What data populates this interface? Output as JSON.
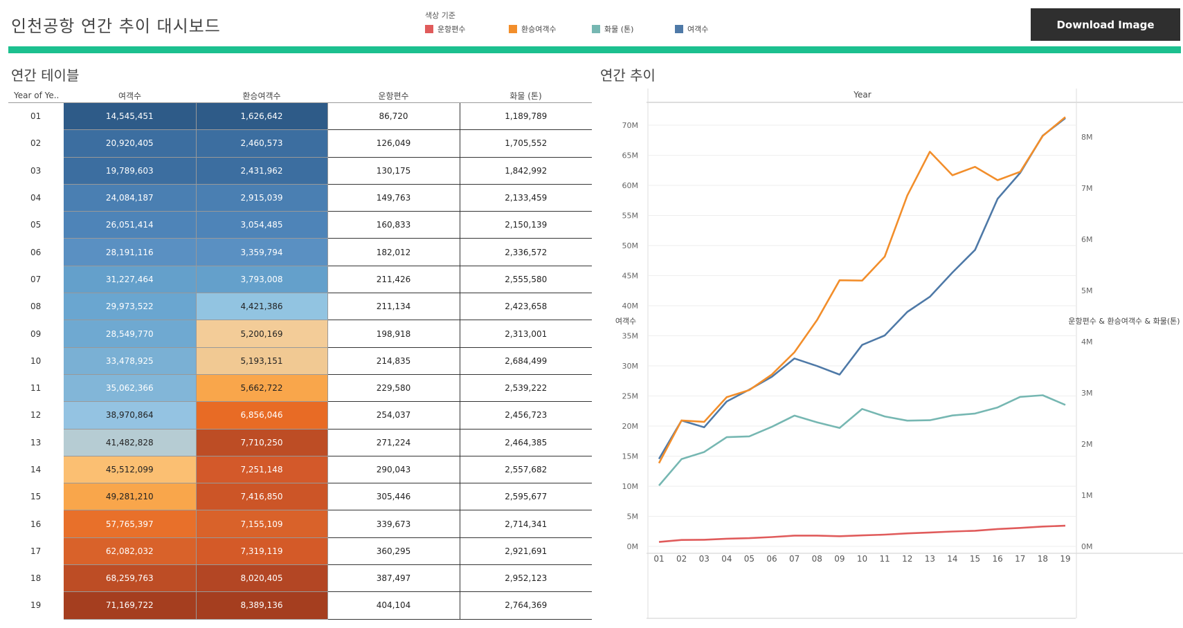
{
  "header": {
    "title": "인천공항 연간 추이 대시보드",
    "legend_title": "색상 기준",
    "legend": [
      {
        "label": "운항편수",
        "color": "#e05b5b"
      },
      {
        "label": "환승여객수",
        "color": "#f28e2b"
      },
      {
        "label": "화물 (톤)",
        "color": "#76b7b2"
      },
      {
        "label": "여객수",
        "color": "#4e79a7"
      }
    ],
    "download_label": "Download Image",
    "accent_color": "#1cc08f"
  },
  "table": {
    "section_title": "연간 테이블",
    "columns": [
      "Year of Ye..",
      "여객수",
      "환승여객수",
      "운항편수",
      "화물 (톤)"
    ],
    "rows": [
      {
        "year": "01",
        "passengers": "14,545,451",
        "transfer": "1,626,642",
        "flights": "86,720",
        "cargo": "1,189,789"
      },
      {
        "year": "02",
        "passengers": "20,920,405",
        "transfer": "2,460,573",
        "flights": "126,049",
        "cargo": "1,705,552"
      },
      {
        "year": "03",
        "passengers": "19,789,603",
        "transfer": "2,431,962",
        "flights": "130,175",
        "cargo": "1,842,992"
      },
      {
        "year": "04",
        "passengers": "24,084,187",
        "transfer": "2,915,039",
        "flights": "149,763",
        "cargo": "2,133,459"
      },
      {
        "year": "05",
        "passengers": "26,051,414",
        "transfer": "3,054,485",
        "flights": "160,833",
        "cargo": "2,150,139"
      },
      {
        "year": "06",
        "passengers": "28,191,116",
        "transfer": "3,359,794",
        "flights": "182,012",
        "cargo": "2,336,572"
      },
      {
        "year": "07",
        "passengers": "31,227,464",
        "transfer": "3,793,008",
        "flights": "211,426",
        "cargo": "2,555,580"
      },
      {
        "year": "08",
        "passengers": "29,973,522",
        "transfer": "4,421,386",
        "flights": "211,134",
        "cargo": "2,423,658"
      },
      {
        "year": "09",
        "passengers": "28,549,770",
        "transfer": "5,200,169",
        "flights": "198,918",
        "cargo": "2,313,001"
      },
      {
        "year": "10",
        "passengers": "33,478,925",
        "transfer": "5,193,151",
        "flights": "214,835",
        "cargo": "2,684,499"
      },
      {
        "year": "11",
        "passengers": "35,062,366",
        "transfer": "5,662,722",
        "flights": "229,580",
        "cargo": "2,539,222"
      },
      {
        "year": "12",
        "passengers": "38,970,864",
        "transfer": "6,856,046",
        "flights": "254,037",
        "cargo": "2,456,723"
      },
      {
        "year": "13",
        "passengers": "41,482,828",
        "transfer": "7,710,250",
        "flights": "271,224",
        "cargo": "2,464,385"
      },
      {
        "year": "14",
        "passengers": "45,512,099",
        "transfer": "7,251,148",
        "flights": "290,043",
        "cargo": "2,557,682"
      },
      {
        "year": "15",
        "passengers": "49,281,210",
        "transfer": "7,416,850",
        "flights": "305,446",
        "cargo": "2,595,677"
      },
      {
        "year": "16",
        "passengers": "57,765,397",
        "transfer": "7,155,109",
        "flights": "339,673",
        "cargo": "2,714,341"
      },
      {
        "year": "17",
        "passengers": "62,082,032",
        "transfer": "7,319,119",
        "flights": "360,295",
        "cargo": "2,921,691"
      },
      {
        "year": "18",
        "passengers": "68,259,763",
        "transfer": "8,020,405",
        "flights": "387,497",
        "cargo": "2,952,123"
      },
      {
        "year": "19",
        "passengers": "71,169,722",
        "transfer": "8,389,136",
        "flights": "404,104",
        "cargo": "2,764,369"
      }
    ],
    "heat": {
      "passenger_colors": [
        "#2e5b88",
        "#3c6ea0",
        "#3c6ea0",
        "#4a7fb2",
        "#4e84b8",
        "#5a90c2",
        "#64a0cb",
        "#6aa6d0",
        "#6fa9d1",
        "#7ab0d4",
        "#82b6d8",
        "#94c3e2",
        "#b6ccd3",
        "#fbbf72",
        "#f9a64b",
        "#e8702a",
        "#d9622a",
        "#bd4d25",
        "#a53e1f"
      ],
      "transfer_colors": [
        "#2e5b88",
        "#3c6ea0",
        "#3c6ea0",
        "#4a7fb2",
        "#4e84b8",
        "#5a90c2",
        "#64a0cb",
        "#92c4e1",
        "#f3cc98",
        "#f1c993",
        "#f9a64b",
        "#e86b25",
        "#bd4d25",
        "#d3592a",
        "#cc5527",
        "#d9622a",
        "#d45a28",
        "#b34624",
        "#a53e1f"
      ]
    }
  },
  "chart_data": {
    "type": "line",
    "section_title": "연간 추이",
    "xlabel": "Year",
    "categories": [
      "01",
      "02",
      "03",
      "04",
      "05",
      "06",
      "07",
      "08",
      "09",
      "10",
      "11",
      "12",
      "13",
      "14",
      "15",
      "16",
      "17",
      "18",
      "19"
    ],
    "left_axis_label": "여객수",
    "right_axis_label": "운항편수 & 환승여객수 & 화물(톤)",
    "left_ticks": [
      "0M",
      "5M",
      "10M",
      "15M",
      "20M",
      "25M",
      "30M",
      "35M",
      "40M",
      "45M",
      "50M",
      "55M",
      "60M",
      "65M",
      "70M"
    ],
    "right_ticks": [
      "0M",
      "1M",
      "2M",
      "3M",
      "4M",
      "5M",
      "6M",
      "7M",
      "8M"
    ],
    "left_ylim": [
      0,
      72000000
    ],
    "right_ylim": [
      0,
      8600000
    ],
    "series": [
      {
        "name": "여객수",
        "axis": "left",
        "color": "#4e79a7",
        "values": [
          14545451,
          20920405,
          19789603,
          24084187,
          26051414,
          28191116,
          31227464,
          29973522,
          28549770,
          33478925,
          35062366,
          38970864,
          41482828,
          45512099,
          49281210,
          57765397,
          62082032,
          68259763,
          71169722
        ]
      },
      {
        "name": "환승여객수",
        "axis": "right",
        "color": "#f28e2b",
        "values": [
          1626642,
          2460573,
          2431962,
          2915039,
          3054485,
          3359794,
          3793008,
          4421386,
          5200169,
          5193151,
          5662722,
          6856046,
          7710250,
          7251148,
          7416850,
          7155109,
          7319119,
          8020405,
          8389136
        ]
      },
      {
        "name": "화물 (톤)",
        "axis": "right",
        "color": "#76b7b2",
        "values": [
          1189789,
          1705552,
          1842992,
          2133459,
          2150139,
          2336572,
          2555580,
          2423658,
          2313001,
          2684499,
          2539222,
          2456723,
          2464385,
          2557682,
          2595677,
          2714341,
          2921691,
          2952123,
          2764369
        ]
      },
      {
        "name": "운항편수",
        "axis": "right",
        "color": "#e05b5b",
        "values": [
          86720,
          126049,
          130175,
          149763,
          160833,
          182012,
          211426,
          211134,
          198918,
          214835,
          229580,
          254037,
          271224,
          290043,
          305446,
          339673,
          360295,
          387497,
          404104
        ]
      }
    ]
  }
}
